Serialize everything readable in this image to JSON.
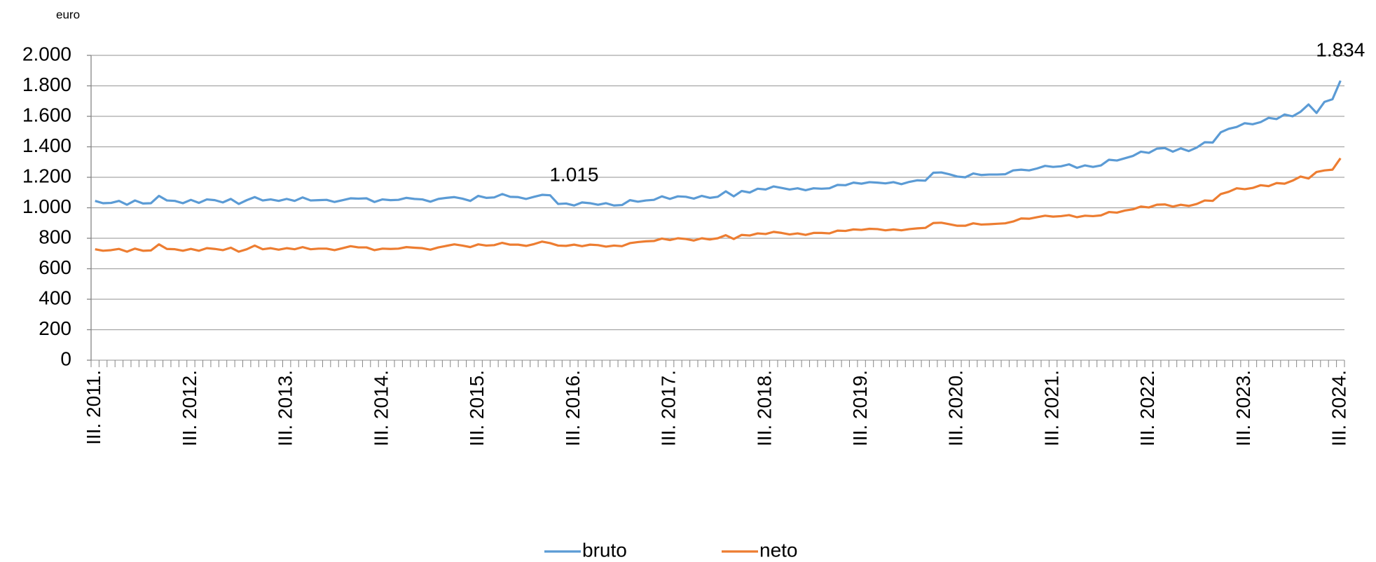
{
  "chart_data": {
    "type": "line",
    "y_label": "euro",
    "categories": [
      "III. 2011.",
      null,
      null,
      null,
      null,
      null,
      null,
      null,
      null,
      null,
      null,
      null,
      "III. 2012.",
      null,
      null,
      null,
      null,
      null,
      null,
      null,
      null,
      null,
      null,
      null,
      "III. 2013.",
      null,
      null,
      null,
      null,
      null,
      null,
      null,
      null,
      null,
      null,
      null,
      "III. 2014.",
      null,
      null,
      null,
      null,
      null,
      null,
      null,
      null,
      null,
      null,
      null,
      "III. 2015.",
      null,
      null,
      null,
      null,
      null,
      null,
      null,
      null,
      null,
      null,
      null,
      "III. 2016.",
      null,
      null,
      null,
      null,
      null,
      null,
      null,
      null,
      null,
      null,
      null,
      "III. 2017.",
      null,
      null,
      null,
      null,
      null,
      null,
      null,
      null,
      null,
      null,
      null,
      "III. 2018.",
      null,
      null,
      null,
      null,
      null,
      null,
      null,
      null,
      null,
      null,
      null,
      "III. 2019.",
      null,
      null,
      null,
      null,
      null,
      null,
      null,
      null,
      null,
      null,
      null,
      "III. 2020.",
      null,
      null,
      null,
      null,
      null,
      null,
      null,
      null,
      null,
      null,
      null,
      "III. 2021.",
      null,
      null,
      null,
      null,
      null,
      null,
      null,
      null,
      null,
      null,
      null,
      "III. 2022.",
      null,
      null,
      null,
      null,
      null,
      null,
      null,
      null,
      null,
      null,
      null,
      "III. 2023.",
      null,
      null,
      null,
      null,
      null,
      null,
      null,
      null,
      null,
      null,
      null,
      "III. 2024."
    ],
    "series": [
      {
        "name": "bruto",
        "color": "#5b9bd5",
        "values": [
          1045,
          1030,
          1032,
          1045,
          1020,
          1048,
          1028,
          1030,
          1078,
          1048,
          1045,
          1030,
          1052,
          1032,
          1055,
          1050,
          1035,
          1058,
          1025,
          1050,
          1070,
          1048,
          1055,
          1045,
          1058,
          1045,
          1068,
          1048,
          1050,
          1052,
          1038,
          1050,
          1062,
          1060,
          1062,
          1038,
          1055,
          1050,
          1052,
          1065,
          1058,
          1055,
          1040,
          1058,
          1065,
          1070,
          1060,
          1045,
          1078,
          1065,
          1068,
          1090,
          1072,
          1070,
          1058,
          1072,
          1085,
          1082,
          1025,
          1028,
          1015,
          1035,
          1030,
          1020,
          1030,
          1015,
          1018,
          1050,
          1040,
          1048,
          1052,
          1075,
          1058,
          1075,
          1072,
          1060,
          1078,
          1065,
          1072,
          1108,
          1075,
          1110,
          1100,
          1125,
          1120,
          1140,
          1130,
          1120,
          1128,
          1115,
          1128,
          1125,
          1128,
          1150,
          1148,
          1165,
          1158,
          1168,
          1165,
          1160,
          1168,
          1155,
          1170,
          1180,
          1178,
          1230,
          1232,
          1220,
          1205,
          1200,
          1225,
          1215,
          1218,
          1218,
          1220,
          1245,
          1250,
          1245,
          1258,
          1275,
          1268,
          1272,
          1285,
          1262,
          1278,
          1268,
          1278,
          1315,
          1310,
          1325,
          1340,
          1368,
          1360,
          1388,
          1392,
          1368,
          1390,
          1372,
          1395,
          1430,
          1428,
          1495,
          1518,
          1530,
          1555,
          1548,
          1562,
          1590,
          1582,
          1612,
          1600,
          1630,
          1678,
          1622,
          1695,
          1712,
          1834
        ],
        "value_labels": [
          null,
          null,
          null,
          null,
          null,
          null,
          null,
          null,
          null,
          null,
          null,
          null,
          null,
          null,
          null,
          null,
          null,
          null,
          null,
          null,
          null,
          null,
          null,
          null,
          null,
          null,
          null,
          null,
          null,
          null,
          null,
          null,
          null,
          null,
          null,
          null,
          null,
          null,
          null,
          null,
          null,
          null,
          null,
          null,
          null,
          null,
          null,
          null,
          null,
          null,
          null,
          null,
          null,
          null,
          null,
          null,
          null,
          null,
          null,
          null,
          "1.015",
          null,
          null,
          null,
          null,
          null,
          null,
          null,
          null,
          null,
          null,
          null,
          null,
          null,
          null,
          null,
          null,
          null,
          null,
          null,
          null,
          null,
          null,
          null,
          null,
          null,
          null,
          null,
          null,
          null,
          null,
          null,
          null,
          null,
          null,
          null,
          null,
          null,
          null,
          null,
          null,
          null,
          null,
          null,
          null,
          null,
          null,
          null,
          null,
          null,
          null,
          null,
          null,
          null,
          null,
          null,
          null,
          null,
          null,
          null,
          null,
          null,
          null,
          null,
          null,
          null,
          null,
          null,
          null,
          null,
          null,
          null,
          null,
          null,
          null,
          null,
          null,
          null,
          null,
          null,
          null,
          null,
          null,
          null,
          null,
          null,
          null,
          null,
          null,
          null,
          null,
          null,
          null,
          null,
          null,
          null,
          "1.834"
        ]
      },
      {
        "name": "neto",
        "color": "#ed7d31",
        "values": [
          728,
          718,
          722,
          730,
          712,
          732,
          718,
          720,
          760,
          730,
          728,
          718,
          730,
          718,
          735,
          730,
          722,
          738,
          712,
          728,
          752,
          728,
          735,
          725,
          735,
          728,
          742,
          728,
          732,
          732,
          722,
          735,
          748,
          740,
          740,
          722,
          732,
          730,
          732,
          742,
          738,
          735,
          725,
          740,
          750,
          760,
          752,
          742,
          760,
          752,
          755,
          770,
          758,
          758,
          750,
          762,
          778,
          768,
          752,
          750,
          758,
          748,
          758,
          755,
          745,
          752,
          748,
          768,
          775,
          780,
          782,
          798,
          788,
          800,
          795,
          785,
          800,
          792,
          800,
          820,
          795,
          822,
          818,
          832,
          828,
          842,
          835,
          825,
          832,
          822,
          835,
          835,
          832,
          850,
          848,
          858,
          855,
          862,
          860,
          852,
          858,
          852,
          860,
          865,
          868,
          900,
          902,
          892,
          882,
          882,
          898,
          890,
          892,
          895,
          898,
          910,
          930,
          928,
          938,
          948,
          942,
          945,
          952,
          938,
          948,
          945,
          950,
          972,
          968,
          982,
          990,
          1008,
          1002,
          1020,
          1022,
          1008,
          1020,
          1012,
          1025,
          1048,
          1045,
          1090,
          1105,
          1128,
          1122,
          1130,
          1148,
          1142,
          1162,
          1158,
          1178,
          1205,
          1192,
          1235,
          1245,
          1250,
          1325
        ]
      }
    ],
    "ylim": [
      0,
      2000
    ],
    "yticks": [
      0,
      {
        "value": 200,
        "label": "200"
      },
      400,
      600,
      800,
      {
        "value": 1000,
        "label": "1.000"
      },
      {
        "value": 1200,
        "label": "1.200"
      },
      {
        "value": 1400,
        "label": "1.400"
      },
      {
        "value": 1600,
        "label": "1.600"
      },
      {
        "value": 1800,
        "label": "1.800"
      },
      {
        "value": 2000,
        "label": "2.000"
      }
    ],
    "grid": true,
    "legend": "bottom"
  }
}
